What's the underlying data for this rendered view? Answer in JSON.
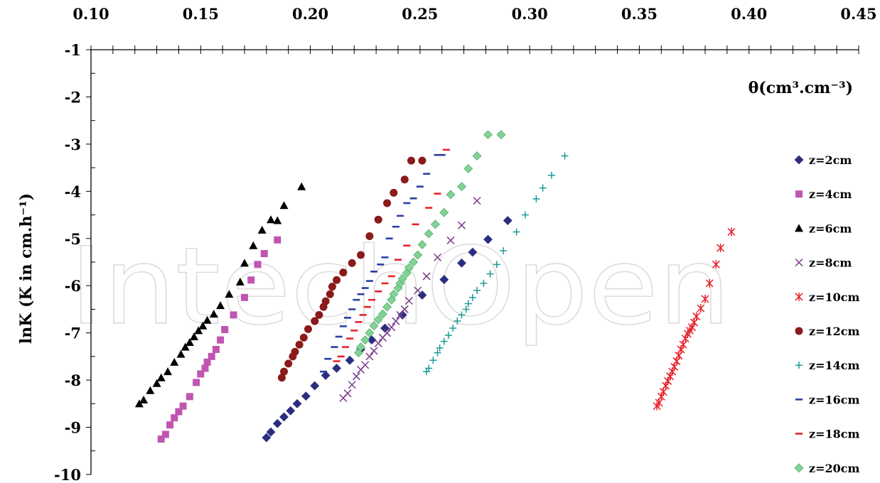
{
  "chart_data": {
    "type": "scatter",
    "title": "",
    "xlabel": "θ(cm³.cm⁻³)",
    "ylabel": "lnK (K in cm.h⁻¹)",
    "xlim": [
      0.1,
      0.45
    ],
    "ylim": [
      -10,
      -1
    ],
    "x_ticks": [
      "0.10",
      "0.15",
      "0.20",
      "0.25",
      "0.30",
      "0.35",
      "0.40",
      "0.45"
    ],
    "y_ticks": [
      "-1",
      "-2",
      "-3",
      "-4",
      "-5",
      "-6",
      "-7",
      "-8",
      "-9",
      "-10"
    ],
    "x_axis_position": "top",
    "grid": false,
    "legend_position": "right",
    "watermark": "IntechOpen",
    "series": [
      {
        "name": "z=2cm",
        "color": "#2b2e80",
        "marker": "diamond",
        "x": [
          0.18,
          0.182,
          0.185,
          0.188,
          0.191,
          0.194,
          0.198,
          0.202,
          0.207,
          0.212,
          0.218,
          0.223,
          0.228,
          0.234,
          0.242,
          0.251,
          0.261,
          0.269,
          0.274,
          0.281,
          0.29
        ],
        "y": [
          -9.22,
          -9.1,
          -8.92,
          -8.78,
          -8.65,
          -8.5,
          -8.34,
          -8.12,
          -7.9,
          -7.75,
          -7.58,
          -7.35,
          -7.15,
          -6.9,
          -6.62,
          -6.2,
          -5.87,
          -5.52,
          -5.29,
          -5.02,
          -4.62
        ]
      },
      {
        "name": "z=4cm",
        "color": "#c055b0",
        "marker": "square",
        "x": [
          0.132,
          0.134,
          0.136,
          0.138,
          0.14,
          0.142,
          0.145,
          0.148,
          0.15,
          0.152,
          0.153,
          0.155,
          0.157,
          0.159,
          0.161,
          0.165,
          0.17,
          0.173,
          0.176,
          0.179,
          0.185
        ],
        "y": [
          -9.25,
          -9.15,
          -8.95,
          -8.8,
          -8.67,
          -8.55,
          -8.35,
          -8.05,
          -7.87,
          -7.75,
          -7.62,
          -7.5,
          -7.35,
          -7.15,
          -6.93,
          -6.62,
          -6.25,
          -5.88,
          -5.55,
          -5.32,
          -5.03
        ]
      },
      {
        "name": "z=6cm",
        "color": "#000000",
        "marker": "triangle",
        "x": [
          0.122,
          0.124,
          0.127,
          0.13,
          0.132,
          0.135,
          0.138,
          0.141,
          0.143,
          0.145,
          0.147,
          0.149,
          0.151,
          0.153,
          0.156,
          0.159,
          0.163,
          0.168,
          0.17,
          0.174,
          0.178,
          0.182,
          0.185,
          0.188,
          0.196
        ],
        "y": [
          -8.5,
          -8.42,
          -8.22,
          -8.07,
          -7.95,
          -7.82,
          -7.62,
          -7.45,
          -7.3,
          -7.2,
          -7.08,
          -6.95,
          -6.85,
          -6.73,
          -6.6,
          -6.42,
          -6.18,
          -5.92,
          -5.52,
          -5.15,
          -4.82,
          -4.6,
          -4.62,
          -4.3,
          -3.9
        ]
      },
      {
        "name": "z=8cm",
        "color": "#7b3a8c",
        "marker": "x",
        "x": [
          0.215,
          0.217,
          0.219,
          0.221,
          0.223,
          0.225,
          0.227,
          0.229,
          0.231,
          0.233,
          0.235,
          0.237,
          0.239,
          0.241,
          0.243,
          0.245,
          0.249,
          0.253,
          0.258,
          0.264,
          0.269,
          0.276
        ],
        "y": [
          -8.38,
          -8.28,
          -8.1,
          -7.92,
          -7.78,
          -7.68,
          -7.5,
          -7.38,
          -7.22,
          -7.1,
          -7.0,
          -6.88,
          -6.75,
          -6.62,
          -6.5,
          -6.32,
          -6.1,
          -5.8,
          -5.4,
          -5.04,
          -4.72,
          -4.2
        ]
      },
      {
        "name": "z=10cm",
        "color": "#e8202a",
        "marker": "star",
        "x": [
          0.358,
          0.359,
          0.36,
          0.361,
          0.362,
          0.363,
          0.364,
          0.365,
          0.366,
          0.367,
          0.368,
          0.369,
          0.37,
          0.371,
          0.372,
          0.373,
          0.374,
          0.375,
          0.376,
          0.378,
          0.38,
          0.382,
          0.385,
          0.387,
          0.392
        ],
        "y": [
          -8.55,
          -8.48,
          -8.35,
          -8.25,
          -8.12,
          -8.02,
          -7.92,
          -7.82,
          -7.72,
          -7.6,
          -7.48,
          -7.35,
          -7.25,
          -7.12,
          -7.02,
          -6.95,
          -6.88,
          -6.78,
          -6.65,
          -6.48,
          -6.28,
          -5.95,
          -5.55,
          -5.2,
          -4.86
        ]
      },
      {
        "name": "z=12cm",
        "color": "#8b1a1a",
        "marker": "circle",
        "x": [
          0.187,
          0.188,
          0.19,
          0.192,
          0.193,
          0.195,
          0.197,
          0.199,
          0.202,
          0.204,
          0.206,
          0.207,
          0.209,
          0.21,
          0.212,
          0.215,
          0.219,
          0.223,
          0.227,
          0.231,
          0.235,
          0.238,
          0.243,
          0.246,
          0.251
        ],
        "y": [
          -7.95,
          -7.82,
          -7.65,
          -7.5,
          -7.4,
          -7.25,
          -7.1,
          -6.92,
          -6.75,
          -6.62,
          -6.45,
          -6.33,
          -6.18,
          -6.02,
          -5.88,
          -5.72,
          -5.52,
          -5.35,
          -4.95,
          -4.6,
          -4.25,
          -4.03,
          -3.75,
          -3.35,
          -3.35
        ]
      },
      {
        "name": "z=14cm",
        "color": "#1b9a96",
        "marker": "plus",
        "x": [
          0.253,
          0.254,
          0.256,
          0.258,
          0.259,
          0.261,
          0.263,
          0.265,
          0.267,
          0.269,
          0.271,
          0.272,
          0.274,
          0.276,
          0.279,
          0.282,
          0.285,
          0.288,
          0.294,
          0.298,
          0.303,
          0.306,
          0.31,
          0.316
        ],
        "y": [
          -7.82,
          -7.75,
          -7.58,
          -7.42,
          -7.32,
          -7.18,
          -7.05,
          -6.9,
          -6.75,
          -6.62,
          -6.5,
          -6.38,
          -6.25,
          -6.1,
          -5.95,
          -5.75,
          -5.55,
          -5.26,
          -4.86,
          -4.5,
          -4.16,
          -3.93,
          -3.66,
          -3.25
        ]
      },
      {
        "name": "z=16cm",
        "color": "#2b3f9e",
        "marker": "dash",
        "x": [
          0.206,
          0.208,
          0.211,
          0.213,
          0.215,
          0.217,
          0.219,
          0.221,
          0.223,
          0.225,
          0.227,
          0.229,
          0.232,
          0.234,
          0.236,
          0.239,
          0.241,
          0.244,
          0.247,
          0.25,
          0.253,
          0.258,
          0.26
        ],
        "y": [
          -7.82,
          -7.55,
          -7.3,
          -7.08,
          -6.86,
          -6.68,
          -6.5,
          -6.3,
          -6.18,
          -6.05,
          -5.9,
          -5.7,
          -5.55,
          -5.4,
          -5.0,
          -4.75,
          -4.52,
          -4.25,
          -4.15,
          -3.9,
          -3.63,
          -3.23,
          -3.23
        ]
      },
      {
        "name": "z=18cm",
        "color": "#e8202a",
        "marker": "dash",
        "x": [
          0.212,
          0.214,
          0.216,
          0.218,
          0.22,
          0.222,
          0.224,
          0.226,
          0.228,
          0.231,
          0.234,
          0.237,
          0.24,
          0.244,
          0.248,
          0.254,
          0.258,
          0.262
        ],
        "y": [
          -7.6,
          -7.5,
          -7.3,
          -7.12,
          -6.95,
          -6.77,
          -6.62,
          -6.45,
          -6.3,
          -6.12,
          -5.95,
          -5.8,
          -5.45,
          -5.15,
          -4.7,
          -4.35,
          -4.05,
          -3.12
        ]
      },
      {
        "name": "z=20cm",
        "color": "#7fd394",
        "marker": "diamond",
        "x": [
          0.222,
          0.223,
          0.225,
          0.227,
          0.229,
          0.231,
          0.233,
          0.235,
          0.237,
          0.238,
          0.24,
          0.241,
          0.242,
          0.244,
          0.245,
          0.247,
          0.249,
          0.251,
          0.254,
          0.257,
          0.261,
          0.264,
          0.269,
          0.272,
          0.276,
          0.281,
          0.287
        ],
        "y": [
          -7.42,
          -7.3,
          -7.15,
          -7.0,
          -6.85,
          -6.72,
          -6.6,
          -6.45,
          -6.3,
          -6.18,
          -6.05,
          -5.95,
          -5.85,
          -5.73,
          -5.62,
          -5.5,
          -5.35,
          -5.13,
          -4.9,
          -4.7,
          -4.45,
          -4.07,
          -3.9,
          -3.52,
          -3.25,
          -2.8,
          -2.8
        ]
      }
    ]
  }
}
